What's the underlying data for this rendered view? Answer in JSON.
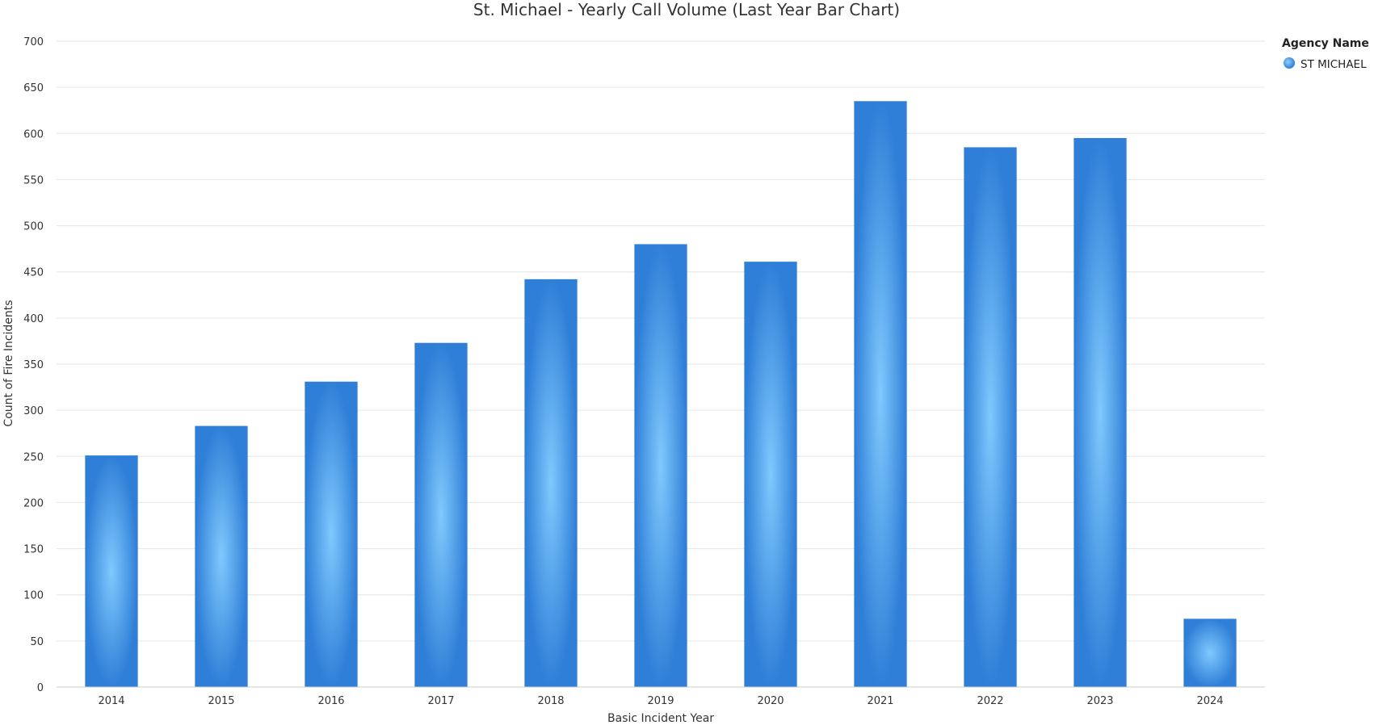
{
  "chart_data": {
    "type": "bar",
    "title": "St. Michael - Yearly Call Volume (Last Year Bar Chart)",
    "xlabel": "Basic Incident Year",
    "ylabel": "Count of Fire Incidents",
    "categories": [
      "2014",
      "2015",
      "2016",
      "2017",
      "2018",
      "2019",
      "2020",
      "2021",
      "2022",
      "2023",
      "2024"
    ],
    "series": [
      {
        "name": "ST MICHAEL",
        "values": [
          251,
          283,
          331,
          373,
          442,
          480,
          461,
          635,
          585,
          595,
          74
        ],
        "color": "#4a9ee8"
      }
    ],
    "ylim": [
      0,
      700
    ],
    "yticks": [
      0,
      50,
      100,
      150,
      200,
      250,
      300,
      350,
      400,
      450,
      500,
      550,
      600,
      650,
      700
    ],
    "grid": true,
    "legend": {
      "title": "Agency Name",
      "placement": "top-right"
    }
  },
  "colors": {
    "bar_center": "#7fc9fd",
    "bar_edge": "#2f7fd8",
    "legend_marker": "#4a9ee8"
  }
}
